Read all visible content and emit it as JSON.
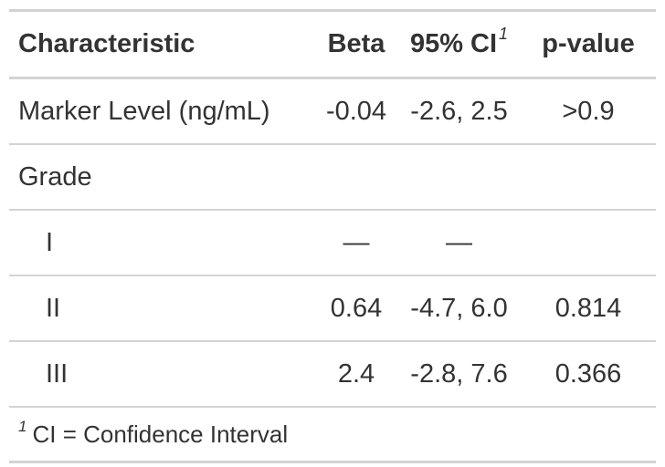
{
  "table": {
    "headers": {
      "characteristic": "Characteristic",
      "beta": "Beta",
      "ci": "95% CI",
      "ci_footnote_mark": "1",
      "pvalue": "p-value"
    },
    "rows": [
      {
        "label": "Marker Level (ng/mL)",
        "beta": "-0.04",
        "ci": "-2.6, 2.5",
        "pvalue": ">0.9"
      },
      {
        "label": "Grade",
        "beta": "",
        "ci": "",
        "pvalue": ""
      },
      {
        "label": "I",
        "beta": "—",
        "ci": "—",
        "pvalue": ""
      },
      {
        "label": "II",
        "beta": "0.64",
        "ci": "-4.7, 6.0",
        "pvalue": "0.814"
      },
      {
        "label": "III",
        "beta": "2.4",
        "ci": "-2.8, 7.6",
        "pvalue": "0.366"
      }
    ],
    "footnote": {
      "mark": "1",
      "text": "CI = Confidence Interval"
    }
  }
}
